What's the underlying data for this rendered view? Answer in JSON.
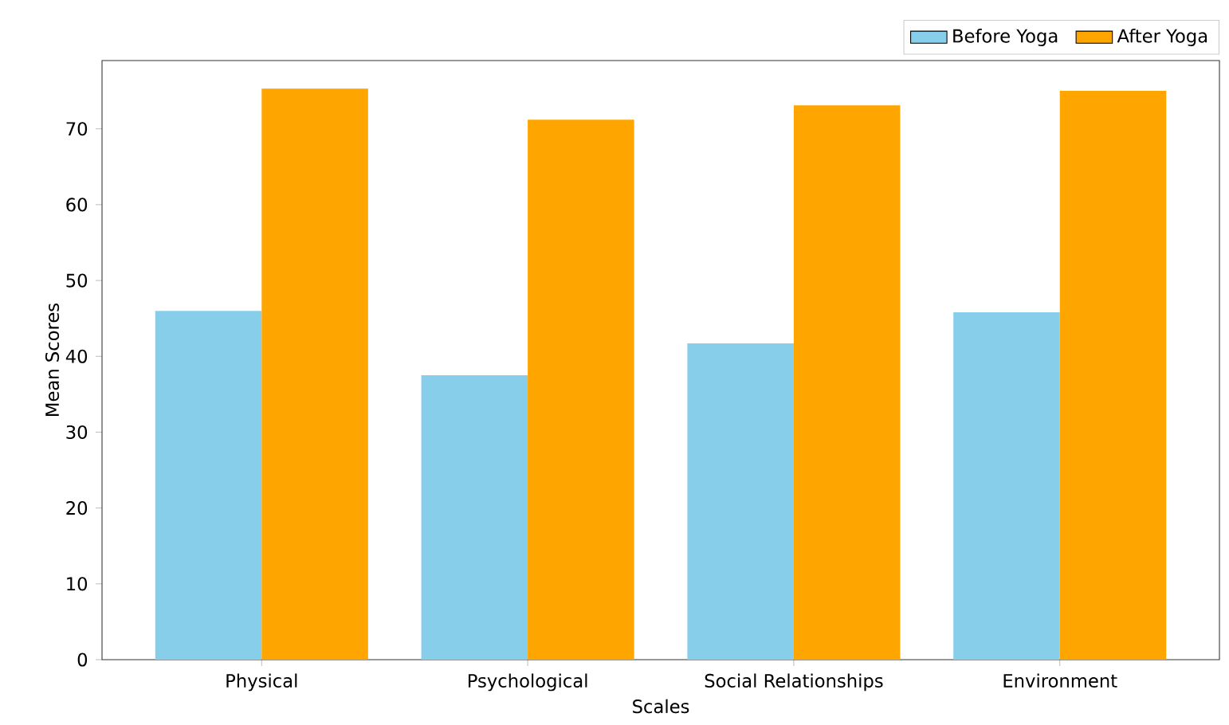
{
  "chart_data": {
    "type": "bar",
    "xlabel": "Scales",
    "ylabel": "Mean Scores",
    "categories": [
      "Physical",
      "Psychological",
      "Social Relationships",
      "Environment"
    ],
    "series": [
      {
        "name": "Before Yoga",
        "color": "#87ceeb",
        "values": [
          46,
          37.5,
          41.7,
          45.8
        ]
      },
      {
        "name": "After Yoga",
        "color": "#ffa500",
        "values": [
          75.3,
          71.2,
          73.1,
          75
        ]
      }
    ],
    "ylim": [
      0,
      79
    ],
    "yticks": [
      0,
      10,
      20,
      30,
      40,
      50,
      60,
      70
    ],
    "grid": false,
    "legend": "top right"
  }
}
